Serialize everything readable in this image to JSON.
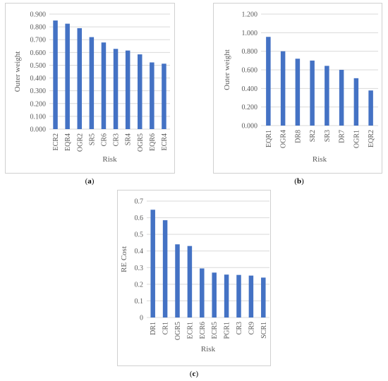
{
  "captions": {
    "a": {
      "open": "(",
      "letter": "a",
      "close": ")"
    },
    "b": {
      "open": "(",
      "letter": "b",
      "close": ")"
    },
    "c": {
      "open": "(",
      "letter": "c",
      "close": ")"
    }
  },
  "colors": {
    "bar": "#4472C4",
    "grid": "#d9d9d9",
    "axis_text": "#595959"
  },
  "chart_data": [
    {
      "id": "a",
      "type": "bar",
      "title": "",
      "xlabel": "Risk",
      "ylabel": "Outer weight",
      "categories": [
        "ECR2",
        "EQR4",
        "OGR2",
        "SR5",
        "CR6",
        "CR3",
        "SR4",
        "OGR5",
        "EQR6",
        "ECR4"
      ],
      "values": [
        0.85,
        0.825,
        0.79,
        0.72,
        0.678,
        0.628,
        0.615,
        0.585,
        0.522,
        0.512
      ],
      "ylim": [
        0,
        0.9
      ],
      "yticks": [
        "0.000",
        "0.100",
        "0.200",
        "0.300",
        "0.400",
        "0.500",
        "0.600",
        "0.700",
        "0.800",
        "0.900"
      ],
      "grid": true,
      "legend": "none"
    },
    {
      "id": "b",
      "type": "bar",
      "title": "",
      "xlabel": "Risk",
      "ylabel": "Outer weight",
      "categories": [
        "EQR1",
        "OGR4",
        "DR8",
        "SR2",
        "SR3",
        "DR7",
        "OGR1",
        "EQR2"
      ],
      "values": [
        0.955,
        0.8,
        0.72,
        0.7,
        0.643,
        0.6,
        0.51,
        0.378
      ],
      "ylim": [
        0,
        1.2
      ],
      "yticks": [
        "0.000",
        "0.200",
        "0.400",
        "0.600",
        "0.800",
        "1.000",
        "1.200"
      ],
      "grid": true,
      "legend": "none"
    },
    {
      "id": "c",
      "type": "bar",
      "title": "",
      "xlabel": "Risk",
      "ylabel": "RE Cost",
      "categories": [
        "DR1",
        "CR1",
        "OGR5",
        "ECR1",
        "ECR6",
        "ECR5",
        "PGR1",
        "CR3",
        "CR9",
        "SCR1"
      ],
      "values": [
        0.648,
        0.585,
        0.44,
        0.43,
        0.295,
        0.27,
        0.258,
        0.256,
        0.252,
        0.24
      ],
      "ylim": [
        0,
        0.7
      ],
      "yticks": [
        "0",
        "0.1",
        "0.2",
        "0.3",
        "0.4",
        "0.5",
        "0.6",
        "0.7"
      ],
      "grid": true,
      "legend": "none"
    }
  ]
}
